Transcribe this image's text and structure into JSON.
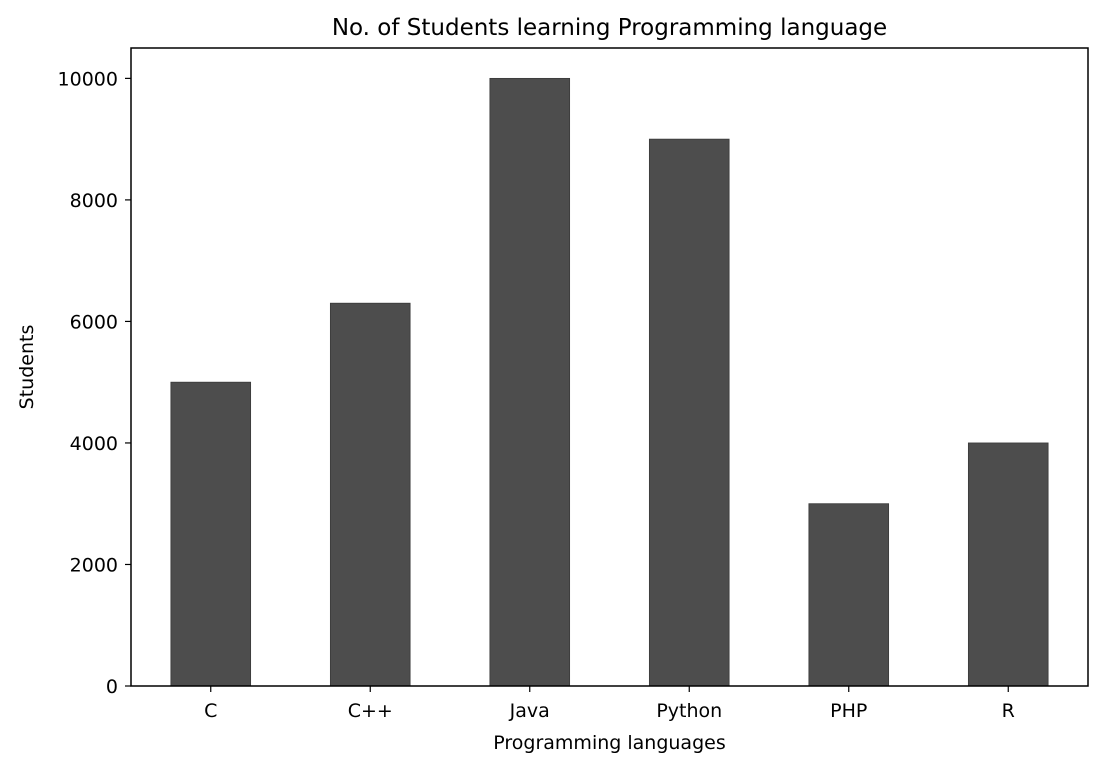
{
  "chart_data": {
    "type": "bar",
    "title": "No. of Students learning Programming language",
    "xlabel": "Programming languages",
    "ylabel": "Students",
    "categories": [
      "C",
      "C++",
      "Java",
      "Python",
      "PHP",
      "R"
    ],
    "values": [
      5000,
      6300,
      10000,
      9000,
      3000,
      4000
    ],
    "ylim": [
      0,
      10500
    ],
    "yticks": [
      0,
      2000,
      4000,
      6000,
      8000,
      10000
    ],
    "ytick_labels": [
      "0",
      "2000",
      "4000",
      "6000",
      "8000",
      "10000"
    ],
    "bar_color": "#4d4d4d",
    "grid": false,
    "legend": "none"
  }
}
